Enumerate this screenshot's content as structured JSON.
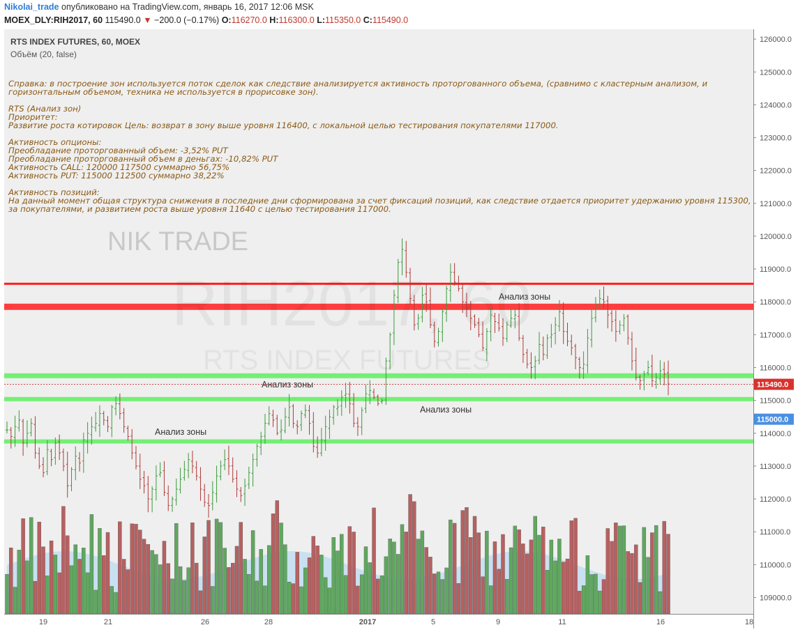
{
  "header": {
    "user": "Nikolai_trade",
    "published": "опубликовано на TradingView.com, январь 16, 2017 12:06 MSK",
    "symbol": "MOEX_DLY:RIH2017, 60",
    "last": "115490.0",
    "change": "−200.0 (−0.17%)",
    "o_label": "O:",
    "o": "116270.0",
    "h_label": "H:",
    "h": "116300.0",
    "l_label": "L:",
    "l": "115350.0",
    "c_label": "C:",
    "c": "115490.0"
  },
  "legend": {
    "title": "RTS INDEX FUTURES, 60, MOEX",
    "volume": "Объём (20, false)"
  },
  "watermark": {
    "brand": "NIK TRADE",
    "symbol": "RIH2017, 60",
    "name": "RTS INDEX FUTURES"
  },
  "note_lines": [
    "Справка: в построение зон используется поток сделок как следствие анализируется активность проторгованного объема, (сравнимо с кластерным анализом, и",
    "горизонтальным объемом, техника не используется в прорисовке зон).",
    "",
    "RTS (Анализ зон)",
    "Приоритет:",
    "Развитие роста котировок  Цель: возврат в зону выше уровня 116400, с локальной целью тестирования покупателями  117000.",
    "",
    "Активность опционы:",
    "Преобладание проторгованный объем:  -3,52% PUT",
    "Преобладание проторгованный объем в деньгах: -10,82% PUT",
    "Активность CALL:  120000 117500  суммарно 56,75%",
    "Активность PUT: 115000 112500 суммарно 38,22%",
    "",
    "Активность позиций:",
    "На данный момент общая структура снижения в последние дни сформирована за счет фиксаций позиций,  как следствие отдается приоритет удержанию уровня 115300,",
    "за покупателями, и развитием роста выше уровня 11640 с целью тестирования 117000."
  ],
  "zones": [
    {
      "label": "Анализ зоны",
      "price": 117850,
      "color": "#ff2a2a"
    },
    {
      "label": "Анализ зоны",
      "price": 115750,
      "color": "#66ee66"
    },
    {
      "label": "Анализ зоны",
      "price": 115040,
      "color": "#66ee66"
    },
    {
      "label": "Анализ зоны",
      "price": 113750,
      "color": "#66ee66"
    }
  ],
  "colors": {
    "up": "#3c9a3c",
    "down": "#b03a3a",
    "vol_up": "#5fa85f",
    "vol_down": "#b86060",
    "vol_ma": "#a9d3f2",
    "bg": "#efefef"
  },
  "chart_data": {
    "type": "candlestick",
    "title": "RTS INDEX FUTURES, 60, MOEX",
    "ylim": [
      108500,
      126300
    ],
    "y_ticks": [
      "126000.0",
      "125000.0",
      "124000.0",
      "123000.0",
      "122000.0",
      "121000.0",
      "120000.0",
      "119000.0",
      "118000.0",
      "117000.0",
      "116000.0",
      "115000.0",
      "114000.0",
      "113000.0",
      "112000.0",
      "111000.0",
      "110000.0",
      "109000.0"
    ],
    "x_ticks": [
      "19",
      "21",
      "26",
      "28",
      "2017",
      "5",
      "9",
      "11",
      "16",
      "18"
    ],
    "last_price_label": "115490.0",
    "last_price": 115490,
    "marker_label": "115000.0",
    "marker_price": 115000,
    "resistance_line": 118550,
    "bars_approx": [
      114100,
      113900,
      114200,
      114400,
      113700,
      114000,
      114300,
      113400,
      113000,
      112800,
      113500,
      113200,
      113700,
      113400,
      113000,
      112400,
      112900,
      113300,
      113100,
      113800,
      114000,
      114200,
      114300,
      114600,
      114400,
      114200,
      114800,
      114900,
      114600,
      114200,
      113900,
      113400,
      113000,
      112600,
      112400,
      112000,
      112300,
      112700,
      112800,
      112200,
      111800,
      112000,
      112300,
      112600,
      112900,
      113200,
      113000,
      112700,
      112300,
      111900,
      111800,
      112200,
      112700,
      113000,
      113200,
      113000,
      112600,
      112300,
      112100,
      112400,
      112800,
      113200,
      113600,
      113900,
      114300,
      114600,
      114400,
      114000,
      114100,
      114500,
      114800,
      114300,
      114200,
      114600,
      114700,
      114300,
      113600,
      113400,
      113800,
      114200,
      114500,
      114800,
      114800,
      115100,
      115200,
      114900,
      114300,
      114200,
      114700,
      115200,
      115300,
      115100,
      114900,
      115000,
      116200,
      117000,
      118200,
      119200,
      119600,
      118900,
      118100,
      117300,
      117500,
      118200,
      118000,
      117300,
      116800,
      117100,
      117700,
      118400,
      118900,
      118600,
      118400,
      118000,
      117800,
      117500,
      117300,
      117000,
      116600,
      117100,
      117600,
      117400,
      117200,
      116900,
      117300,
      117500,
      117600,
      116900,
      116400,
      116100,
      116000,
      116200,
      116700,
      116400,
      116900,
      117000,
      117300,
      117700,
      117100,
      116800,
      116600,
      116300,
      116000,
      116100,
      116900,
      117500,
      117900,
      118100,
      118000,
      117600,
      117400,
      117100,
      117300,
      117500,
      116900,
      116200,
      115700,
      115600,
      115800,
      116000,
      115600,
      115700,
      115900,
      115800,
      115500
    ]
  }
}
